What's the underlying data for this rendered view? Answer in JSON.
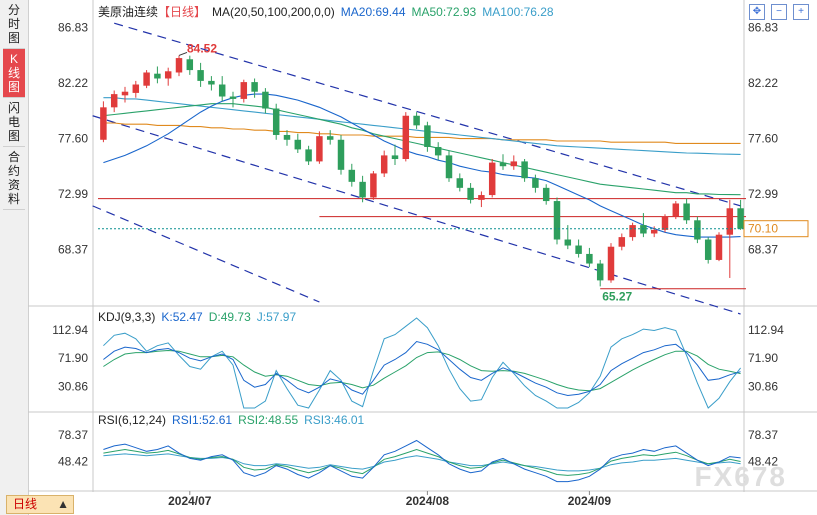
{
  "sidebar": {
    "tabs": [
      {
        "label": "分时图",
        "active": false
      },
      {
        "label": "K线图",
        "active": true
      },
      {
        "label": "闪电图",
        "active": false
      },
      {
        "label": "合约资料",
        "active": false
      }
    ]
  },
  "header": {
    "title": "美原油连续",
    "period": "【日线】",
    "ma_label": "MA(20,50,100,200,0,0)",
    "ma20": "MA20:69.44",
    "ma50": "MA50:72.93",
    "ma100": "MA100:76.28"
  },
  "kdj_legend": {
    "label": "KDJ(9,3,3)",
    "k": "K:52.47",
    "d": "D:49.73",
    "j": "J:57.97"
  },
  "rsi_legend": {
    "label": "RSI(6,12,24)",
    "rsi1": "RSI1:52.61",
    "rsi2": "RSI2:48.55",
    "rsi3": "RSI3:46.01"
  },
  "period_button": "日线",
  "watermark": "FX678",
  "current_price": "70.10",
  "colors": {
    "up": "#e03b3b",
    "down": "#2e9e5c",
    "ma20": "#1a66cc",
    "ma50": "#2aa26a",
    "ma100": "#3a9ec9",
    "ma200": "#e08a1e"
  },
  "chart_data": {
    "type": "candlestick",
    "price_axis": {
      "ticks": [
        86.83,
        82.22,
        77.6,
        72.99,
        68.37
      ],
      "ylim": [
        64.0,
        88.3
      ]
    },
    "date_labels": [
      "2024/07",
      "2024/08",
      "2024/09"
    ],
    "annotations": {
      "high": "84.52",
      "low": "65.27"
    },
    "candles": [
      [
        77.5,
        80.7,
        77.3,
        80.2
      ],
      [
        80.2,
        81.6,
        79.8,
        81.3
      ],
      [
        81.2,
        81.9,
        80.6,
        81.5
      ],
      [
        81.4,
        82.4,
        81.0,
        82.1
      ],
      [
        82.0,
        83.3,
        81.8,
        83.1
      ],
      [
        83.0,
        83.6,
        82.2,
        82.6
      ],
      [
        82.6,
        83.5,
        82.0,
        83.2
      ],
      [
        83.1,
        84.5,
        82.8,
        84.3
      ],
      [
        84.2,
        84.5,
        82.9,
        83.3
      ],
      [
        83.3,
        83.9,
        81.9,
        82.4
      ],
      [
        82.4,
        82.8,
        81.6,
        82.1
      ],
      [
        82.1,
        82.8,
        80.7,
        81.1
      ],
      [
        81.1,
        81.5,
        80.2,
        80.9
      ],
      [
        80.9,
        82.5,
        80.6,
        82.3
      ],
      [
        82.3,
        82.6,
        81.0,
        81.5
      ],
      [
        81.5,
        81.8,
        79.7,
        80.1
      ],
      [
        80.1,
        80.5,
        77.5,
        77.9
      ],
      [
        77.9,
        78.3,
        77.0,
        77.5
      ],
      [
        77.5,
        78.0,
        76.4,
        76.7
      ],
      [
        76.7,
        77.0,
        75.4,
        75.7
      ],
      [
        75.7,
        78.2,
        75.5,
        77.8
      ],
      [
        77.8,
        78.3,
        77.1,
        77.5
      ],
      [
        77.5,
        77.9,
        74.6,
        75.0
      ],
      [
        75.0,
        75.5,
        73.6,
        74.0
      ],
      [
        74.0,
        74.5,
        72.3,
        72.7
      ],
      [
        72.7,
        74.9,
        72.5,
        74.7
      ],
      [
        74.7,
        76.6,
        74.4,
        76.2
      ],
      [
        76.2,
        77.1,
        75.4,
        75.9
      ],
      [
        75.9,
        79.8,
        75.7,
        79.5
      ],
      [
        79.5,
        79.8,
        78.4,
        78.7
      ],
      [
        78.7,
        79.0,
        76.5,
        76.9
      ],
      [
        76.9,
        77.3,
        75.8,
        76.2
      ],
      [
        76.2,
        76.6,
        74.0,
        74.3
      ],
      [
        74.3,
        74.7,
        73.2,
        73.5
      ],
      [
        73.5,
        73.9,
        72.2,
        72.5
      ],
      [
        72.5,
        73.2,
        71.9,
        72.9
      ],
      [
        72.9,
        75.9,
        72.7,
        75.6
      ],
      [
        75.6,
        76.3,
        75.0,
        75.3
      ],
      [
        75.3,
        76.2,
        75.0,
        75.7
      ],
      [
        75.7,
        75.9,
        74.0,
        74.3
      ],
      [
        74.3,
        74.6,
        73.1,
        73.5
      ],
      [
        73.5,
        73.8,
        72.1,
        72.4
      ],
      [
        72.4,
        72.7,
        68.8,
        69.2
      ],
      [
        69.2,
        70.4,
        68.4,
        68.7
      ],
      [
        68.7,
        69.2,
        67.7,
        68.0
      ],
      [
        68.0,
        68.5,
        66.9,
        67.2
      ],
      [
        67.2,
        67.5,
        65.3,
        65.8
      ],
      [
        65.8,
        68.9,
        65.6,
        68.6
      ],
      [
        68.6,
        69.7,
        68.3,
        69.4
      ],
      [
        69.4,
        70.6,
        69.1,
        70.4
      ],
      [
        70.4,
        71.4,
        69.4,
        69.7
      ],
      [
        69.7,
        70.3,
        69.4,
        70.0
      ],
      [
        70.0,
        71.3,
        69.8,
        71.1
      ],
      [
        71.1,
        72.4,
        70.9,
        72.2
      ],
      [
        72.2,
        72.6,
        70.5,
        70.8
      ],
      [
        70.8,
        71.1,
        68.9,
        69.2
      ],
      [
        69.2,
        69.4,
        67.2,
        67.5
      ],
      [
        67.5,
        69.8,
        67.4,
        69.6
      ],
      [
        69.6,
        72.5,
        66.0,
        71.8
      ],
      [
        71.8,
        72.5,
        70.0,
        70.1
      ]
    ],
    "moving_averages": {
      "ma20": [
        75.6,
        75.9,
        76.2,
        76.6,
        77.0,
        77.5,
        78.0,
        78.6,
        79.2,
        79.8,
        80.3,
        80.7,
        81.0,
        81.2,
        81.3,
        81.3,
        81.2,
        81.0,
        80.8,
        80.5,
        80.2,
        79.8,
        79.4,
        78.9,
        78.4,
        77.9,
        77.4,
        77.0,
        76.6,
        76.3,
        76.1,
        75.8,
        75.6,
        75.3,
        75.1,
        74.9,
        74.8,
        74.6,
        74.5,
        74.4,
        74.3,
        74.1,
        73.7,
        73.3,
        72.9,
        72.5,
        72.0,
        71.6,
        71.2,
        70.8,
        70.4,
        70.1,
        69.8,
        69.6,
        69.5,
        69.4,
        69.4,
        69.4,
        69.4,
        69.44
      ],
      "ma50": [
        79.5,
        79.6,
        79.7,
        79.8,
        79.9,
        80.0,
        80.1,
        80.2,
        80.3,
        80.4,
        80.5,
        80.5,
        80.5,
        80.4,
        80.3,
        80.2,
        80.0,
        79.8,
        79.6,
        79.4,
        79.2,
        79.0,
        78.8,
        78.5,
        78.3,
        78.0,
        77.8,
        77.6,
        77.4,
        77.2,
        77.0,
        76.8,
        76.6,
        76.4,
        76.2,
        76.0,
        75.8,
        75.6,
        75.4,
        75.2,
        75.0,
        74.8,
        74.6,
        74.4,
        74.2,
        74.0,
        73.8,
        73.7,
        73.6,
        73.5,
        73.4,
        73.3,
        73.2,
        73.1,
        73.1,
        73.0,
        73.0,
        72.95,
        72.94,
        72.93
      ],
      "ma100": [
        81.0,
        81.0,
        80.9,
        80.9,
        80.8,
        80.7,
        80.6,
        80.5,
        80.4,
        80.3,
        80.2,
        80.1,
        80.0,
        79.9,
        79.8,
        79.7,
        79.6,
        79.5,
        79.4,
        79.3,
        79.2,
        79.1,
        79.0,
        78.9,
        78.8,
        78.7,
        78.6,
        78.5,
        78.4,
        78.3,
        78.2,
        78.1,
        78.0,
        77.9,
        77.8,
        77.7,
        77.6,
        77.5,
        77.4,
        77.3,
        77.2,
        77.1,
        77.0,
        76.95,
        76.9,
        76.85,
        76.8,
        76.75,
        76.7,
        76.65,
        76.6,
        76.55,
        76.5,
        76.45,
        76.4,
        76.38,
        76.35,
        76.32,
        76.3,
        76.28
      ],
      "ma200": [
        78.9,
        78.9,
        78.8,
        78.8,
        78.8,
        78.7,
        78.7,
        78.7,
        78.6,
        78.6,
        78.5,
        78.5,
        78.4,
        78.4,
        78.3,
        78.3,
        78.2,
        78.2,
        78.1,
        78.1,
        78.0,
        78.0,
        77.9,
        77.9,
        77.9,
        77.8,
        77.8,
        77.8,
        77.8,
        77.7,
        77.7,
        77.7,
        77.7,
        77.6,
        77.6,
        77.6,
        77.6,
        77.5,
        77.5,
        77.5,
        77.5,
        77.5,
        77.4,
        77.4,
        77.4,
        77.4,
        77.4,
        77.3,
        77.3,
        77.3,
        77.3,
        77.3,
        77.3,
        77.2,
        77.2,
        77.2,
        77.2,
        77.2,
        77.2,
        77.2
      ]
    },
    "horizontal_lines": [
      72.6,
      71.1,
      65.1
    ],
    "kdj": {
      "axis_ticks": [
        112.94,
        71.9,
        30.86
      ],
      "ylim": [
        0,
        130
      ],
      "k": [
        70,
        82,
        88,
        86,
        80,
        84,
        86,
        80,
        72,
        68,
        74,
        78,
        70,
        40,
        30,
        34,
        50,
        40,
        28,
        22,
        30,
        42,
        38,
        26,
        20,
        40,
        62,
        70,
        80,
        96,
        92,
        84,
        70,
        56,
        44,
        40,
        50,
        58,
        52,
        44,
        36,
        30,
        22,
        18,
        20,
        24,
        34,
        54,
        64,
        72,
        80,
        84,
        90,
        92,
        80,
        62,
        40,
        42,
        48,
        52.47
      ],
      "d": [
        60,
        70,
        78,
        80,
        80,
        82,
        83,
        82,
        78,
        74,
        74,
        76,
        74,
        62,
        52,
        46,
        48,
        46,
        40,
        34,
        32,
        36,
        37,
        34,
        29,
        33,
        43,
        52,
        61,
        73,
        80,
        81,
        77,
        70,
        61,
        54,
        53,
        54,
        53,
        50,
        45,
        40,
        34,
        29,
        26,
        25,
        28,
        37,
        46,
        55,
        63,
        70,
        77,
        82,
        82,
        75,
        63,
        56,
        53,
        49.73
      ],
      "j": [
        90,
        105,
        108,
        100,
        82,
        90,
        94,
        76,
        60,
        56,
        74,
        82,
        62,
        0,
        0,
        10,
        54,
        28,
        4,
        0,
        26,
        54,
        40,
        10,
        2,
        54,
        100,
        106,
        118,
        130,
        116,
        90,
        56,
        28,
        10,
        12,
        44,
        66,
        50,
        32,
        18,
        10,
        0,
        0,
        8,
        22,
        46,
        88,
        100,
        106,
        114,
        112,
        116,
        112,
        76,
        36,
        0,
        14,
        38,
        57.97
      ]
    },
    "rsi": {
      "axis_ticks": [
        78.37,
        48.42
      ],
      "ylim": [
        20,
        95
      ],
      "rsi1": [
        62,
        66,
        68,
        64,
        60,
        62,
        66,
        58,
        52,
        50,
        54,
        56,
        50,
        36,
        32,
        36,
        44,
        40,
        34,
        30,
        36,
        44,
        38,
        32,
        30,
        42,
        56,
        60,
        66,
        72,
        64,
        56,
        46,
        40,
        36,
        38,
        48,
        52,
        46,
        40,
        36,
        32,
        26,
        26,
        28,
        32,
        40,
        52,
        56,
        58,
        62,
        60,
        64,
        66,
        58,
        50,
        44,
        48,
        54,
        52.61
      ],
      "rsi2": [
        58,
        60,
        62,
        60,
        58,
        59,
        61,
        57,
        53,
        51,
        53,
        54,
        51,
        42,
        39,
        40,
        45,
        43,
        39,
        36,
        39,
        44,
        41,
        37,
        35,
        42,
        51,
        54,
        58,
        62,
        58,
        54,
        48,
        44,
        41,
        42,
        47,
        50,
        47,
        44,
        41,
        38,
        34,
        33,
        34,
        36,
        41,
        49,
        52,
        54,
        56,
        55,
        57,
        59,
        55,
        50,
        46,
        48,
        51,
        48.55
      ],
      "rsi3": [
        55,
        56,
        57,
        56,
        55,
        56,
        57,
        55,
        53,
        52,
        52,
        53,
        51,
        46,
        44,
        44,
        46,
        45,
        43,
        41,
        42,
        45,
        43,
        41,
        40,
        43,
        48,
        50,
        53,
        55,
        53,
        51,
        48,
        46,
        44,
        44,
        46,
        48,
        46,
        44,
        43,
        41,
        39,
        38,
        38,
        39,
        41,
        45,
        47,
        48,
        50,
        50,
        51,
        52,
        50,
        48,
        46,
        47,
        48,
        46.01
      ]
    }
  }
}
